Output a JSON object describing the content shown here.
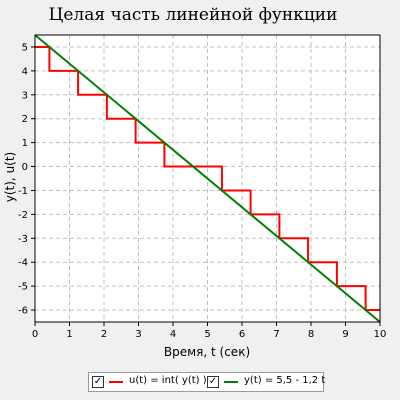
{
  "chart_data": {
    "type": "line",
    "title": "Целая часть линейной функции",
    "xlabel": "Время, t (сек)",
    "ylabel": "y(t), u(t)",
    "xlim": [
      0,
      10
    ],
    "ylim": [
      -6.5,
      5.5
    ],
    "x_ticks": [
      "0",
      "1",
      "2",
      "3",
      "4",
      "5",
      "6",
      "7",
      "8",
      "9",
      "10"
    ],
    "y_ticks": [
      "5",
      "4",
      "3",
      "2",
      "1",
      "0",
      "-1",
      "-2",
      "-3",
      "-4",
      "-5",
      "-6"
    ],
    "grid": true,
    "legend_position": "bottom",
    "series": [
      {
        "name": "u(t) = int( y(t) )",
        "style": "step",
        "color": "#ff0000",
        "checked": "✓",
        "x": [
          0,
          0.4167,
          1.25,
          2.0833,
          2.9167,
          3.75,
          4.5833,
          5.4167,
          6.25,
          7.0833,
          7.9167,
          8.75,
          9.5833,
          10
        ],
        "y": [
          5,
          4,
          3,
          2,
          1,
          0,
          0,
          -1,
          -2,
          -3,
          -4,
          -5,
          -6,
          -6
        ]
      },
      {
        "name": "y(t) = 5,5 - 1,2 t",
        "style": "line",
        "color": "#008000",
        "checked": "✓",
        "x": [
          0,
          10
        ],
        "y": [
          5.5,
          -6.5
        ]
      }
    ]
  }
}
